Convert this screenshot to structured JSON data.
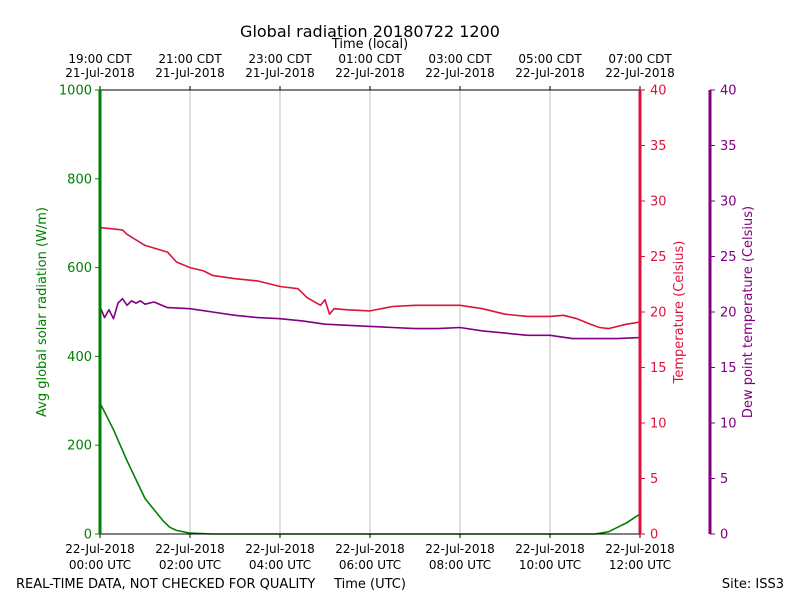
{
  "chart_data": {
    "type": "line",
    "title": "Global radiation 20180722 1200",
    "top_axis_label": "Time (local)",
    "bottom_axis_label": "Time (UTC)",
    "left_axis_label": "Avg global solar radiation (W/m)",
    "right_axis_label": "Temperature (Celsius)",
    "far_right_axis_label": "Dew point temperature (Celsius)",
    "footer_left": "REAL-TIME DATA, NOT CHECKED FOR QUALITY",
    "footer_right": "Site: ISS3",
    "x_range_hours_utc": [
      0,
      12
    ],
    "left_ylim": [
      0,
      1000
    ],
    "right_ylim": [
      0,
      40
    ],
    "far_right_ylim": [
      0,
      40
    ],
    "grid": "vertical",
    "bottom_ticks": [
      {
        "x": 0,
        "line1": "22-Jul-2018",
        "line2": "00:00 UTC"
      },
      {
        "x": 2,
        "line1": "22-Jul-2018",
        "line2": "02:00 UTC"
      },
      {
        "x": 4,
        "line1": "22-Jul-2018",
        "line2": "04:00 UTC"
      },
      {
        "x": 6,
        "line1": "22-Jul-2018",
        "line2": "06:00 UTC"
      },
      {
        "x": 8,
        "line1": "22-Jul-2018",
        "line2": "08:00 UTC"
      },
      {
        "x": 10,
        "line1": "22-Jul-2018",
        "line2": "10:00 UTC"
      },
      {
        "x": 12,
        "line1": "22-Jul-2018",
        "line2": "12:00 UTC"
      }
    ],
    "top_ticks": [
      {
        "x": 0,
        "line1": "19:00 CDT",
        "line2": "21-Jul-2018"
      },
      {
        "x": 2,
        "line1": "21:00 CDT",
        "line2": "21-Jul-2018"
      },
      {
        "x": 4,
        "line1": "23:00 CDT",
        "line2": "21-Jul-2018"
      },
      {
        "x": 6,
        "line1": "01:00 CDT",
        "line2": "22-Jul-2018"
      },
      {
        "x": 8,
        "line1": "03:00 CDT",
        "line2": "22-Jul-2018"
      },
      {
        "x": 10,
        "line1": "05:00 CDT",
        "line2": "22-Jul-2018"
      },
      {
        "x": 12,
        "line1": "07:00 CDT",
        "line2": "22-Jul-2018"
      }
    ],
    "left_ticks": [
      0,
      200,
      400,
      600,
      800,
      1000
    ],
    "right_ticks": [
      0,
      5,
      10,
      15,
      20,
      25,
      30,
      35,
      40
    ],
    "far_right_ticks": [
      0,
      5,
      10,
      15,
      20,
      25,
      30,
      35,
      40
    ],
    "series": [
      {
        "axis": "left",
        "color": "#008000",
        "x": [
          0,
          0.3,
          0.6,
          1.0,
          1.4,
          1.55,
          1.7,
          2.0,
          2.5,
          3,
          4,
          6,
          8,
          10,
          11.0,
          11.3,
          11.5,
          11.7,
          12
        ],
        "values": [
          295,
          235,
          165,
          80,
          30,
          15,
          8,
          2,
          0,
          0,
          0,
          0,
          0,
          0,
          0,
          5,
          15,
          25,
          45
        ]
      },
      {
        "axis": "right",
        "color": "#dc143c",
        "x": [
          0,
          0.5,
          0.6,
          1,
          1.5,
          1.7,
          2,
          2.3,
          2.5,
          3,
          3.5,
          4,
          4.4,
          4.6,
          4.9,
          5.0,
          5.1,
          5.2,
          5.5,
          6,
          6.5,
          7,
          7.5,
          8,
          8.5,
          9,
          9.5,
          10,
          10.3,
          10.6,
          10.9,
          11.1,
          11.3,
          11.7,
          12
        ],
        "values": [
          27.6,
          27.4,
          27.0,
          26.0,
          25.4,
          24.5,
          24.0,
          23.7,
          23.3,
          23.0,
          22.8,
          22.3,
          22.1,
          21.3,
          20.6,
          21.1,
          19.8,
          20.3,
          20.2,
          20.1,
          20.5,
          20.6,
          20.6,
          20.6,
          20.3,
          19.8,
          19.6,
          19.6,
          19.7,
          19.4,
          18.9,
          18.6,
          18.5,
          18.9,
          19.1
        ]
      },
      {
        "axis": "far_right",
        "color": "#800080",
        "x": [
          0,
          0.1,
          0.2,
          0.3,
          0.4,
          0.5,
          0.6,
          0.7,
          0.8,
          0.9,
          1.0,
          1.2,
          1.5,
          2,
          2.5,
          3,
          3.5,
          4,
          4.5,
          5,
          5.5,
          6,
          6.5,
          7,
          7.5,
          8,
          8.5,
          9,
          9.5,
          10,
          10.5,
          11,
          11.5,
          12
        ],
        "values": [
          20.5,
          19.5,
          20.2,
          19.4,
          20.8,
          21.2,
          20.6,
          21.0,
          20.8,
          21.0,
          20.7,
          20.9,
          20.4,
          20.3,
          20.0,
          19.7,
          19.5,
          19.4,
          19.2,
          18.9,
          18.8,
          18.7,
          18.6,
          18.5,
          18.5,
          18.6,
          18.3,
          18.1,
          17.9,
          17.9,
          17.6,
          17.6,
          17.6,
          17.7
        ]
      }
    ]
  }
}
